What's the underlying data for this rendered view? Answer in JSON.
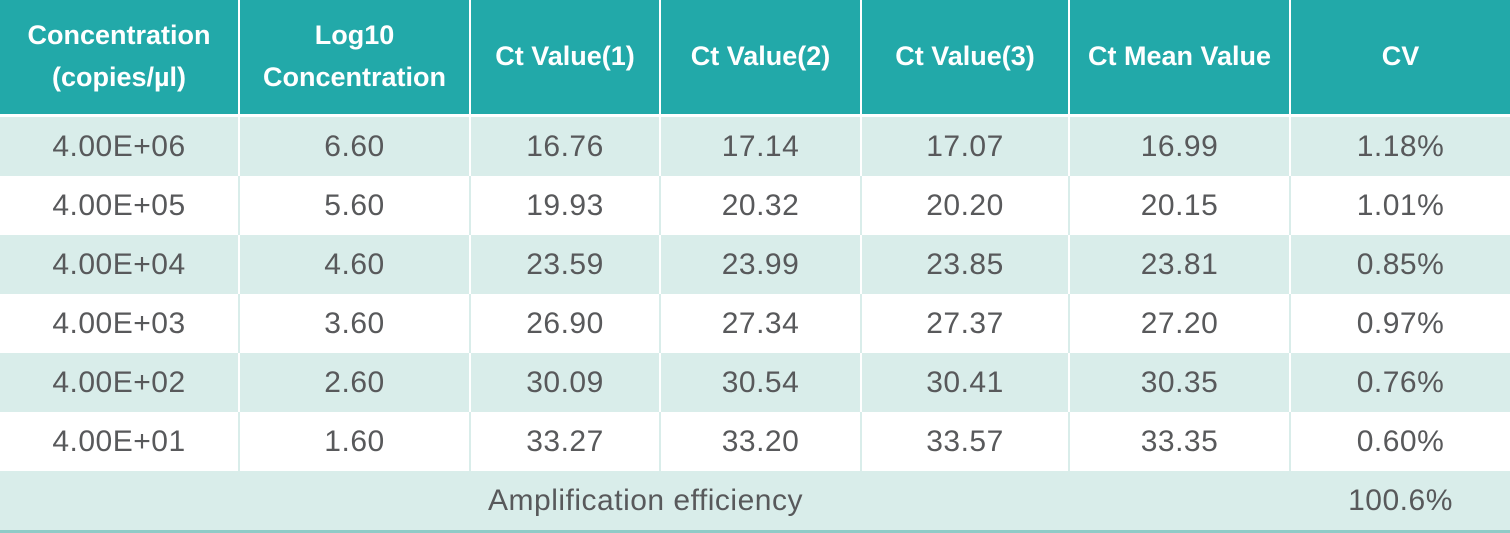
{
  "colors": {
    "header_bg": "#22A9A9",
    "header_text": "#FFFFFF",
    "row_stripe_bg": "#D9EDEA",
    "row_white_bg": "#FFFFFF",
    "cell_text": "#58595B",
    "bottom_rule": "#8FCBC7"
  },
  "chart_data": {
    "type": "table",
    "columns": [
      "Concentration (copies/µl)",
      "Log10 Concentration",
      "Ct Value(1)",
      "Ct Value(2)",
      "Ct Value(3)",
      "Ct Mean Value",
      "CV"
    ],
    "header_display_lines": [
      [
        "Concentration",
        "(copies/µl)"
      ],
      [
        "Log10",
        "Concentration"
      ],
      [
        "Ct Value(1)"
      ],
      [
        "Ct Value(2)"
      ],
      [
        "Ct Value(3)"
      ],
      [
        "Ct Mean Value"
      ],
      [
        "CV"
      ]
    ],
    "rows": [
      [
        "4.00E+06",
        "6.60",
        "16.76",
        "17.14",
        "17.07",
        "16.99",
        "1.18%"
      ],
      [
        "4.00E+05",
        "5.60",
        "19.93",
        "20.32",
        "20.20",
        "20.15",
        "1.01%"
      ],
      [
        "4.00E+04",
        "4.60",
        "23.59",
        "23.99",
        "23.85",
        "23.81",
        "0.85%"
      ],
      [
        "4.00E+03",
        "3.60",
        "26.90",
        "27.34",
        "27.37",
        "27.20",
        "0.97%"
      ],
      [
        "4.00E+02",
        "2.60",
        "30.09",
        "30.54",
        "30.41",
        "30.35",
        "0.76%"
      ],
      [
        "4.00E+01",
        "1.60",
        "33.27",
        "33.20",
        "33.57",
        "33.35",
        "0.60%"
      ]
    ],
    "footer_label": "Amplification efficiency",
    "footer_value": "100.6%"
  }
}
